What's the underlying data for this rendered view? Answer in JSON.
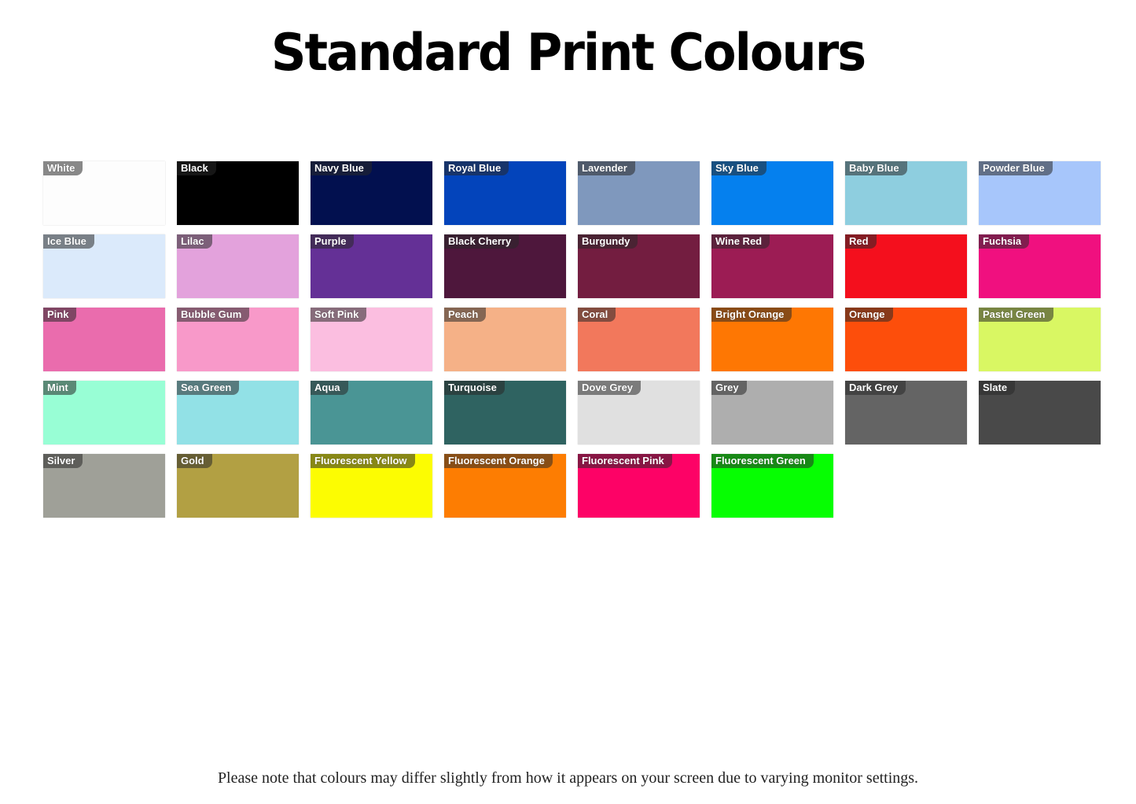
{
  "title": "Standard Print Colours",
  "colours": [
    {
      "name": "White",
      "hex": "#fdfdfd"
    },
    {
      "name": "Black",
      "hex": "#000000"
    },
    {
      "name": "Navy Blue",
      "hex": "#02104f"
    },
    {
      "name": "Royal Blue",
      "hex": "#0344bb"
    },
    {
      "name": "Lavender",
      "hex": "#7f98bd"
    },
    {
      "name": "Sky Blue",
      "hex": "#0580ee"
    },
    {
      "name": "Baby Blue",
      "hex": "#8ecedf"
    },
    {
      "name": "Powder Blue",
      "hex": "#a7c6fb"
    },
    {
      "name": "Ice Blue",
      "hex": "#dbeafb"
    },
    {
      "name": "Lilac",
      "hex": "#e3a2dc"
    },
    {
      "name": "Purple",
      "hex": "#643096"
    },
    {
      "name": "Black Cherry",
      "hex": "#4e173c"
    },
    {
      "name": "Burgundy",
      "hex": "#731d40"
    },
    {
      "name": "Wine Red",
      "hex": "#9c1c54"
    },
    {
      "name": "Red",
      "hex": "#f40f1d"
    },
    {
      "name": "Fuchsia",
      "hex": "#f0107f"
    },
    {
      "name": "Pink",
      "hex": "#ea6cad"
    },
    {
      "name": "Bubble Gum",
      "hex": "#f899c9"
    },
    {
      "name": "Soft Pink",
      "hex": "#fbbee0"
    },
    {
      "name": "Peach",
      "hex": "#f5b187"
    },
    {
      "name": "Coral",
      "hex": "#f2785c"
    },
    {
      "name": "Bright Orange",
      "hex": "#fe7703"
    },
    {
      "name": "Orange",
      "hex": "#fd4e0b"
    },
    {
      "name": "Pastel Green",
      "hex": "#d9f763"
    },
    {
      "name": "Mint",
      "hex": "#98fed5"
    },
    {
      "name": "Sea Green",
      "hex": "#92e1e6"
    },
    {
      "name": "Aqua",
      "hex": "#4a9595"
    },
    {
      "name": "Turquoise",
      "hex": "#2f6361"
    },
    {
      "name": "Dove Grey",
      "hex": "#e0e0e0"
    },
    {
      "name": "Grey",
      "hex": "#aeaeae"
    },
    {
      "name": "Dark Grey",
      "hex": "#646464"
    },
    {
      "name": "Slate",
      "hex": "#494949"
    },
    {
      "name": "Silver",
      "hex": "#9fa098"
    },
    {
      "name": "Gold",
      "hex": "#b2a043"
    },
    {
      "name": "Fluorescent Yellow",
      "hex": "#fcfc02"
    },
    {
      "name": "Fluorescent Orange",
      "hex": "#fd7d02"
    },
    {
      "name": "Fluorescent Pink",
      "hex": "#fd0266"
    },
    {
      "name": "Fluorescent Green",
      "hex": "#06fe02"
    }
  ],
  "note": "Please note that colours may differ slightly from how it appears on your screen due to varying monitor settings."
}
